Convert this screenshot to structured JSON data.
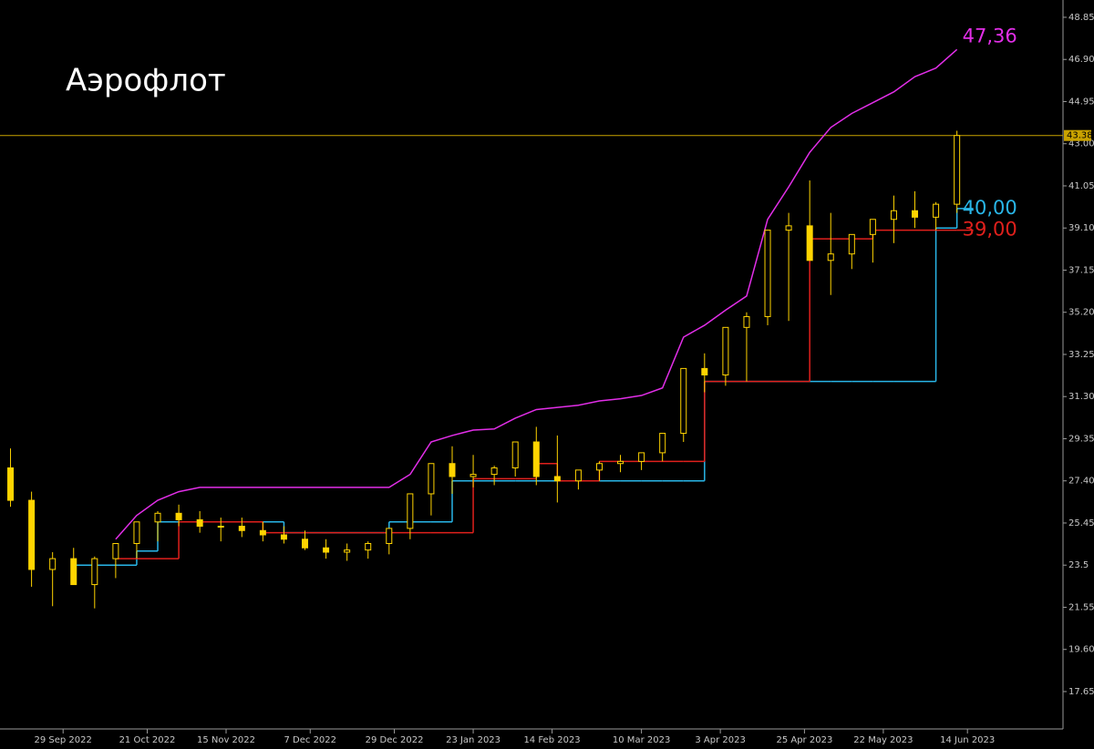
{
  "chart_data": {
    "type": "candlestick",
    "title": "Аэрофлот",
    "xlim": [
      0,
      202
    ],
    "ylim": [
      15.92,
      49.65
    ],
    "xticks": [
      {
        "value": 12,
        "label": "29 Sep 2022"
      },
      {
        "value": 28,
        "label": "21 Oct 2022"
      },
      {
        "value": 43,
        "label": "15 Nov 2022"
      },
      {
        "value": 59,
        "label": "7 Dec 2022"
      },
      {
        "value": 75,
        "label": "29 Dec 2022"
      },
      {
        "value": 90,
        "label": "23 Jan 2023"
      },
      {
        "value": 105,
        "label": "14 Feb 2023"
      },
      {
        "value": 122,
        "label": "10 Mar 2023"
      },
      {
        "value": 137,
        "label": "3 Apr 2023"
      },
      {
        "value": 153,
        "label": "25 Apr 2023"
      },
      {
        "value": 168,
        "label": "22 May 2023"
      },
      {
        "value": 184,
        "label": "14 Jun 2023"
      }
    ],
    "yticks": [
      48.85,
      {
        "value": 46.9,
        "label": "46.90"
      },
      44.95,
      {
        "value": 43.0,
        "label": "43.00"
      },
      41.05,
      {
        "value": 39.1,
        "label": "39.10"
      },
      37.15,
      {
        "value": 35.2,
        "label": "35.20"
      },
      33.25,
      {
        "value": 31.3,
        "label": "31.30"
      },
      29.35,
      {
        "value": 27.4,
        "label": "27.40"
      },
      25.45,
      23.5,
      21.55,
      {
        "value": 19.6,
        "label": "19.60"
      },
      17.65
    ],
    "candles": {
      "color": "#ffd400",
      "x": [
        2,
        6,
        10,
        14,
        18,
        22,
        26,
        30,
        34,
        38,
        42,
        46,
        50,
        54,
        58,
        62,
        66,
        70,
        74,
        78,
        82,
        86,
        90,
        94,
        98,
        102,
        106,
        110,
        114,
        118,
        122,
        126,
        130,
        134,
        138,
        142,
        146,
        150,
        154,
        158,
        162,
        166,
        170,
        174,
        178,
        182
      ],
      "open": [
        28.0,
        26.5,
        23.3,
        23.8,
        22.6,
        23.8,
        24.5,
        25.5,
        25.9,
        25.6,
        25.3,
        25.3,
        25.1,
        24.9,
        24.7,
        24.3,
        24.1,
        24.2,
        24.5,
        25.2,
        26.8,
        28.2,
        27.6,
        27.7,
        28.0,
        29.2,
        27.6,
        27.4,
        27.9,
        28.2,
        28.3,
        28.7,
        29.6,
        32.6,
        32.3,
        34.5,
        35.0,
        39.0,
        39.2,
        37.6,
        37.9,
        38.8,
        39.5,
        39.9,
        39.6,
        40.2
      ],
      "high": [
        28.9,
        26.9,
        24.1,
        24.3,
        23.9,
        24.2,
        24.9,
        26.0,
        26.3,
        26.0,
        25.7,
        25.7,
        25.5,
        25.3,
        25.1,
        24.7,
        24.5,
        24.6,
        24.9,
        25.6,
        27.3,
        29.0,
        28.6,
        28.1,
        28.5,
        29.9,
        29.5,
        27.8,
        28.3,
        28.6,
        28.7,
        29.2,
        30.3,
        33.3,
        32.9,
        35.2,
        35.8,
        39.8,
        41.3,
        39.8,
        38.6,
        39.3,
        40.6,
        40.8,
        40.3,
        43.6
      ],
      "low": [
        26.2,
        22.5,
        21.6,
        22.9,
        21.5,
        22.9,
        23.8,
        24.6,
        25.3,
        25.0,
        24.6,
        24.8,
        24.6,
        24.5,
        24.2,
        23.8,
        23.7,
        23.8,
        24.0,
        24.7,
        25.8,
        26.8,
        27.1,
        27.2,
        27.6,
        27.2,
        26.4,
        27.0,
        27.4,
        27.8,
        27.9,
        28.3,
        29.2,
        31.5,
        31.8,
        32.0,
        34.6,
        34.8,
        38.6,
        36.0,
        37.2,
        37.5,
        38.4,
        39.1,
        39.0,
        39.8
      ],
      "close": [
        26.5,
        23.3,
        23.8,
        22.6,
        23.8,
        24.5,
        25.5,
        25.9,
        25.6,
        25.3,
        25.3,
        25.1,
        24.9,
        24.7,
        24.3,
        24.1,
        24.2,
        24.5,
        25.2,
        26.8,
        28.2,
        27.6,
        27.7,
        28.0,
        29.2,
        27.6,
        27.4,
        27.9,
        28.2,
        28.3,
        28.7,
        29.6,
        32.6,
        32.3,
        34.5,
        35.0,
        39.0,
        39.2,
        37.6,
        37.9,
        38.8,
        39.5,
        39.9,
        39.6,
        40.2,
        43.38
      ]
    },
    "lines": [
      {
        "color": "#e22ee8",
        "step": false,
        "values": [
          null,
          null,
          null,
          null,
          null,
          24.7,
          25.8,
          26.5,
          26.9,
          27.1,
          27.1,
          27.1,
          27.1,
          27.1,
          27.1,
          27.1,
          27.1,
          27.1,
          27.1,
          27.7,
          29.2,
          29.5,
          29.75,
          29.8,
          30.3,
          30.7,
          30.8,
          30.9,
          31.1,
          31.2,
          31.35,
          31.7,
          34.05,
          34.6,
          35.3,
          35.95,
          39.5,
          41.0,
          42.6,
          43.75,
          44.4,
          44.9,
          45.4,
          46.1,
          46.5,
          47.36
        ],
        "value_labels": [
          null,
          null,
          null,
          null,
          null,
          null,
          null,
          null,
          null,
          null,
          null,
          null,
          null,
          null,
          null,
          null,
          null,
          null,
          null,
          null,
          null,
          null,
          null,
          null,
          null,
          null,
          null,
          null,
          null,
          null,
          null,
          null,
          null,
          null,
          null,
          null,
          null,
          null,
          null,
          null,
          null,
          null,
          null,
          null,
          null,
          "47,36"
        ]
      },
      {
        "color": "#29b6e8",
        "step": true,
        "values": [
          null,
          null,
          null,
          23.5,
          23.5,
          23.5,
          24.15,
          25.5,
          25.5,
          25.5,
          25.5,
          25.5,
          25.5,
          25.0,
          25.0,
          25.0,
          25.0,
          25.0,
          25.5,
          25.5,
          25.5,
          27.4,
          27.4,
          27.4,
          27.4,
          27.4,
          27.4,
          27.4,
          27.4,
          27.4,
          27.4,
          27.4,
          27.4,
          32.0,
          32.0,
          32.0,
          32.0,
          32.0,
          32.0,
          32.0,
          32.0,
          32.0,
          32.0,
          32.0,
          39.1,
          40.0
        ],
        "value_labels": [
          null,
          null,
          null,
          null,
          null,
          null,
          null,
          null,
          null,
          null,
          null,
          null,
          null,
          null,
          null,
          null,
          null,
          null,
          null,
          null,
          null,
          null,
          null,
          null,
          null,
          null,
          null,
          null,
          null,
          null,
          null,
          null,
          null,
          null,
          null,
          null,
          null,
          null,
          null,
          null,
          null,
          null,
          null,
          null,
          null,
          "40,00"
        ]
      },
      {
        "color": "#e0201c",
        "step": true,
        "values": [
          null,
          null,
          null,
          null,
          null,
          23.8,
          23.8,
          23.8,
          25.5,
          25.5,
          25.5,
          25.5,
          25.0,
          25.0,
          25.0,
          25.0,
          25.0,
          25.0,
          25.0,
          25.0,
          25.0,
          25.0,
          27.5,
          27.5,
          27.5,
          28.2,
          27.4,
          27.4,
          28.3,
          28.3,
          28.3,
          28.3,
          28.3,
          32.0,
          32.0,
          32.0,
          32.0,
          32.0,
          38.6,
          38.6,
          38.6,
          39.0,
          39.0,
          39.0,
          39.0,
          39.0
        ],
        "value_labels": [
          null,
          null,
          null,
          null,
          null,
          null,
          null,
          null,
          null,
          null,
          null,
          null,
          null,
          null,
          null,
          null,
          null,
          null,
          null,
          null,
          null,
          null,
          null,
          null,
          null,
          null,
          null,
          null,
          null,
          null,
          null,
          null,
          null,
          null,
          null,
          null,
          null,
          null,
          null,
          null,
          null,
          null,
          null,
          null,
          null,
          "39,00"
        ]
      }
    ],
    "price_line_color": "#c9a200"
  }
}
